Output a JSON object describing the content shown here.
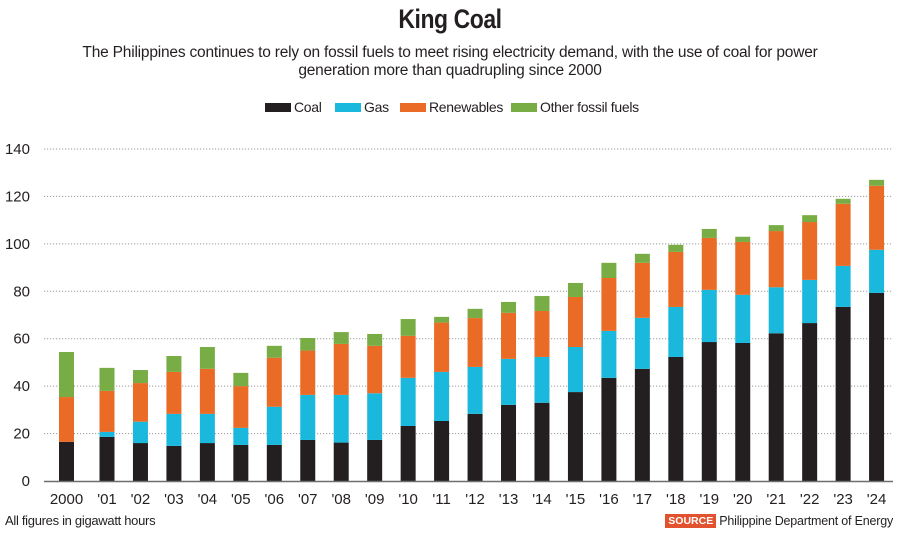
{
  "header": {
    "title": "King Coal",
    "subtitle_line1": "The Philippines continues to rely on fossil fuels to meet rising electricity demand, with the use of coal for power",
    "subtitle_line2": "generation more than quadrupling since 2000"
  },
  "legend": [
    {
      "label": "Coal",
      "color": "#231f20"
    },
    {
      "label": "Gas",
      "color": "#1bb8dd"
    },
    {
      "label": "Renewables",
      "color": "#e96b25"
    },
    {
      "label": "Other fossil fuels",
      "color": "#78ad45"
    }
  ],
  "footer": {
    "note": "All figures in gigawatt hours",
    "source_badge": "SOURCE",
    "source_text": "Philippine Department of Energy"
  },
  "chart_data": {
    "type": "bar",
    "stacked": true,
    "title": "King Coal",
    "xlabel": "",
    "ylabel": "",
    "units": "gigawatt hours",
    "ylim": [
      0,
      140
    ],
    "yticks": [
      0,
      20,
      40,
      60,
      80,
      100,
      120,
      140
    ],
    "grid": true,
    "legend_position": "top-center",
    "categories": [
      "2000",
      "'01",
      "'02",
      "'03",
      "'04",
      "'05",
      "'06",
      "'07",
      "'08",
      "'09",
      "'10",
      "'11",
      "'12",
      "'13",
      "'14",
      "'15",
      "'16",
      "'17",
      "'18",
      "'19",
      "'20",
      "'21",
      "'22",
      "'23",
      "'24"
    ],
    "series": [
      {
        "name": "Coal",
        "color": "#231f20",
        "values": [
          16.5,
          18.6,
          16.0,
          14.8,
          16.0,
          15.2,
          15.2,
          17.3,
          16.2,
          17.3,
          23.2,
          25.3,
          28.3,
          32.1,
          33.0,
          37.5,
          43.5,
          47.3,
          52.3,
          58.6,
          58.2,
          62.3,
          66.6,
          73.4,
          79.3
        ]
      },
      {
        "name": "Gas",
        "color": "#1bb8dd",
        "values": [
          0.0,
          2.1,
          9.0,
          13.5,
          12.3,
          7.2,
          16.1,
          19.0,
          20.1,
          19.7,
          20.3,
          20.7,
          19.8,
          19.4,
          19.3,
          19.0,
          19.8,
          21.5,
          21.1,
          22.0,
          20.3,
          19.4,
          18.2,
          17.3,
          18.2
        ]
      },
      {
        "name": "Renewables",
        "color": "#e96b25",
        "values": [
          18.9,
          17.3,
          16.3,
          17.7,
          19.0,
          17.6,
          20.7,
          18.7,
          21.5,
          20.0,
          17.7,
          20.8,
          20.6,
          19.4,
          19.4,
          21.1,
          22.3,
          23.2,
          23.2,
          21.9,
          22.3,
          23.7,
          24.4,
          26.2,
          27.0
        ]
      },
      {
        "name": "Other fossil fuels",
        "color": "#78ad45",
        "values": [
          19.0,
          9.7,
          5.5,
          6.7,
          9.2,
          5.6,
          5.0,
          5.3,
          5.0,
          5.0,
          7.1,
          2.4,
          3.9,
          4.6,
          6.3,
          5.9,
          6.4,
          3.8,
          3.0,
          3.8,
          2.2,
          2.5,
          2.9,
          2.1,
          2.5
        ]
      }
    ],
    "totals": [
      54.4,
      47.7,
      46.8,
      52.7,
      56.5,
      45.6,
      57.0,
      60.3,
      62.8,
      62.0,
      68.3,
      69.2,
      72.6,
      75.5,
      78.0,
      83.5,
      92.0,
      95.8,
      99.6,
      106.3,
      103.0,
      107.9,
      112.1,
      119.0,
      127.0
    ]
  }
}
